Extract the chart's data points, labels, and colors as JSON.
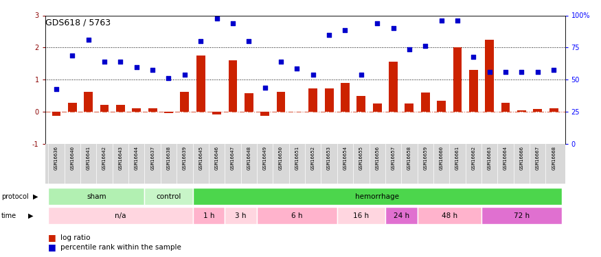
{
  "title": "GDS618 / 5763",
  "samples": [
    "GSM16636",
    "GSM16640",
    "GSM16641",
    "GSM16642",
    "GSM16643",
    "GSM16644",
    "GSM16637",
    "GSM16638",
    "GSM16639",
    "GSM16645",
    "GSM16646",
    "GSM16647",
    "GSM16648",
    "GSM16649",
    "GSM16650",
    "GSM16651",
    "GSM16652",
    "GSM16653",
    "GSM16654",
    "GSM16655",
    "GSM16656",
    "GSM16657",
    "GSM16658",
    "GSM16659",
    "GSM16660",
    "GSM16661",
    "GSM16662",
    "GSM16663",
    "GSM16664",
    "GSM16666",
    "GSM16667",
    "GSM16668"
  ],
  "log_ratio": [
    -0.13,
    0.27,
    0.62,
    0.22,
    0.22,
    0.12,
    0.12,
    -0.05,
    0.62,
    1.75,
    -0.08,
    1.6,
    0.57,
    -0.13,
    0.62,
    0.0,
    0.72,
    0.72,
    0.9,
    0.5,
    0.25,
    1.55,
    0.25,
    0.6,
    0.35,
    2.0,
    1.3,
    2.25,
    0.28,
    0.05,
    0.08,
    0.12
  ],
  "percentile_rank": [
    0.7,
    1.75,
    2.25,
    1.55,
    1.55,
    1.4,
    1.3,
    1.05,
    1.15,
    2.2,
    2.9,
    2.75,
    2.2,
    0.75,
    1.55,
    1.35,
    1.15,
    2.4,
    2.55,
    1.15,
    2.75,
    2.6,
    1.95,
    2.05,
    2.85,
    2.85,
    1.7,
    1.25,
    1.25,
    1.25,
    1.25,
    1.3
  ],
  "protocol_groups": [
    {
      "label": "sham",
      "start": 0,
      "end": 6,
      "color": "#b2f0b2"
    },
    {
      "label": "control",
      "start": 6,
      "end": 9,
      "color": "#c8f5c8"
    },
    {
      "label": "hemorrhage",
      "start": 9,
      "end": 32,
      "color": "#4cd64c"
    }
  ],
  "time_groups": [
    {
      "label": "n/a",
      "start": 0,
      "end": 9,
      "color": "#ffd6e0"
    },
    {
      "label": "1 h",
      "start": 9,
      "end": 11,
      "color": "#ffb3cc"
    },
    {
      "label": "3 h",
      "start": 11,
      "end": 13,
      "color": "#ffd6e0"
    },
    {
      "label": "6 h",
      "start": 13,
      "end": 18,
      "color": "#ffb3cc"
    },
    {
      "label": "16 h",
      "start": 18,
      "end": 21,
      "color": "#ffd6e0"
    },
    {
      "label": "24 h",
      "start": 21,
      "end": 23,
      "color": "#e070d0"
    },
    {
      "label": "48 h",
      "start": 23,
      "end": 27,
      "color": "#ffb3cc"
    },
    {
      "label": "72 h",
      "start": 27,
      "end": 32,
      "color": "#e070d0"
    }
  ],
  "bar_color": "#cc2200",
  "dot_color": "#0000cc",
  "ylim_left": [
    -1,
    3
  ],
  "right_ticks": [
    0,
    25,
    50,
    75,
    100
  ],
  "right_tick_labels": [
    "0",
    "25",
    "50",
    "75",
    "100%"
  ]
}
